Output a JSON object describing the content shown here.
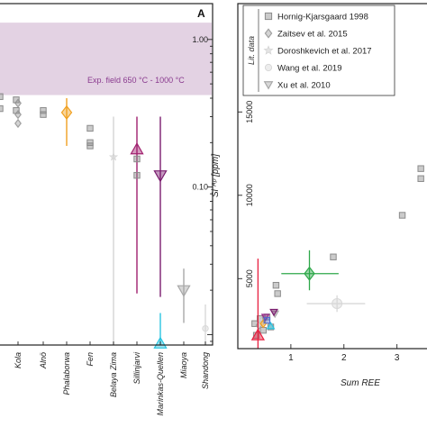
{
  "chart_data": [
    {
      "panel": "A",
      "type": "scatter",
      "y_scale": "log",
      "ylim": [
        0.0085,
        1.75
      ],
      "y_ticks": [
        {
          "label": "1.00",
          "value": 1.0
        },
        {
          "label": "0.10",
          "value": 0.1
        }
      ],
      "shaded_band": {
        "label": "Exp. field 650 °C - 1000 °C",
        "from": 0.42,
        "to": 1.3,
        "color": "#d9c3d9"
      },
      "categories": [
        "Kola",
        "Alnö",
        "Phalaborwa",
        "Fen",
        "Belaya Zima",
        "Sillinjarvi",
        "Marinkas-Quellen",
        "Miaoya",
        "Shandong"
      ],
      "series": [
        {
          "category": "edge",
          "marker": "square",
          "color": "#8c8c8c",
          "values": [
            0.41,
            0.34
          ]
        },
        {
          "category": "Kola",
          "marker": "diamond",
          "color": "#a0a0a0",
          "values": [
            0.37,
            0.31,
            0.27
          ]
        },
        {
          "category": "Kola",
          "marker": "square",
          "color": "#8c8c8c",
          "values": [
            0.39,
            0.33
          ]
        },
        {
          "category": "Alnö",
          "marker": "square",
          "color": "#8c8c8c",
          "values": [
            0.33,
            0.31
          ]
        },
        {
          "category": "Phalaborwa",
          "marker": "diamond",
          "color": "#f0a020",
          "values": [
            0.32
          ],
          "err": [
            0.19,
            0.4
          ]
        },
        {
          "category": "Fen",
          "marker": "square",
          "color": "#8c8c8c",
          "values": [
            0.25,
            0.2,
            0.19
          ]
        },
        {
          "category": "Belaya Zima",
          "marker": "star",
          "color": "#d4d4d4",
          "values": [
            0.16
          ],
          "err": [
            0.0085,
            0.3
          ]
        },
        {
          "category": "Sillinjarvi",
          "marker": "triangle-up",
          "color": "#a0206e",
          "values": [
            0.18
          ],
          "err": [
            0.019,
            0.3
          ]
        },
        {
          "category": "Sillinjarvi",
          "marker": "square",
          "color": "#8c8c8c",
          "values": [
            0.155,
            0.12
          ]
        },
        {
          "category": "Marinkas-Quellen",
          "marker": "triangle-down",
          "color": "#7a1c6e",
          "values": [
            0.12
          ],
          "err": [
            0.018,
            0.3
          ]
        },
        {
          "category": "Marinkas-Quellen",
          "marker": "triangle-up",
          "color": "#29c4e0",
          "values": [
            0.0087
          ],
          "err": [
            0.0085,
            0.014
          ]
        },
        {
          "category": "Miaoya",
          "marker": "triangle-down",
          "color": "#a8a8a8",
          "values": [
            0.02
          ],
          "err": [
            0.012,
            0.028
          ]
        },
        {
          "category": "Shandong",
          "marker": "circle",
          "color": "#d8d8d8",
          "values": [
            0.011
          ],
          "err": [
            0.0085,
            0.016
          ]
        }
      ]
    },
    {
      "panel": "B",
      "type": "scatter",
      "ylabel": "Si ᴬᵖ [ppm]",
      "xlabel": "Sum REE",
      "xlim": [
        0,
        3.6
      ],
      "ylim": [
        800,
        21500
      ],
      "x_ticks": [
        1,
        2,
        3
      ],
      "y_ticks": [
        5000,
        10000,
        15000
      ],
      "legend_title": "Lit. data",
      "legend": [
        {
          "label": "Hornig-Kjarsgaard 1998",
          "marker": "square",
          "color": "#8c8c8c"
        },
        {
          "label": "Zaitsev et al. 2015",
          "marker": "diamond",
          "color": "#a0a0a0"
        },
        {
          "label": "Doroshkevich et al. 2017",
          "marker": "star",
          "color": "#d4d4d4"
        },
        {
          "label": "Wang et al. 2019",
          "marker": "circle",
          "color": "#d8d8d8"
        },
        {
          "label": "Xu et al. 2010",
          "marker": "triangle-down",
          "color": "#a8a8a8"
        }
      ],
      "series": [
        {
          "name": "Hornig-Kjarsgaard 1998",
          "marker": "square",
          "color": "#8c8c8c",
          "points": [
            [
              1.05,
              17500
            ],
            [
              3.45,
              11600
            ],
            [
              3.45,
              11000
            ],
            [
              3.1,
              8800
            ],
            [
              1.8,
              6300
            ],
            [
              0.72,
              4600
            ],
            [
              0.75,
              4100
            ],
            [
              0.32,
              2300
            ],
            [
              0.42,
              2600
            ],
            [
              0.48,
              1900
            ],
            [
              0.55,
              2700
            ],
            [
              0.35,
              1600
            ],
            [
              0.62,
              2100
            ]
          ]
        },
        {
          "name": "Zaitsev et al. 2015",
          "marker": "diamond",
          "color": "#a0a0a0",
          "points": [
            [
              0.5,
              2600
            ],
            [
              0.4,
              2200
            ]
          ]
        },
        {
          "name": "Doroshkevich et al. 2017",
          "marker": "star",
          "color": "#d4d4d4",
          "points": [
            [
              0.45,
              2400
            ]
          ]
        },
        {
          "name": "Wang et al. 2019",
          "marker": "circle",
          "color": "#d8d8d8",
          "points": [
            [
              1.87,
              3500
            ]
          ],
          "xerr": [
            1.3,
            2.4
          ],
          "yerr": [
            3000,
            4000
          ]
        },
        {
          "name": "Xu et al. 2010",
          "marker": "triangle-down",
          "color": "#a8a8a8",
          "points": [
            [
              0.7,
              2900
            ]
          ]
        },
        {
          "name": "",
          "marker": "diamond",
          "color": "#2ea84a",
          "points": [
            [
              1.35,
              5300
            ]
          ],
          "xerr": [
            0.82,
            1.9
          ],
          "yerr": [
            4300,
            6700
          ]
        },
        {
          "name": "",
          "marker": "diamond",
          "color": "#f0a020",
          "points": [
            [
              0.48,
              2300
            ]
          ]
        },
        {
          "name": "",
          "marker": "triangle-up",
          "color": "#e82040",
          "points": [
            [
              0.38,
              1600
            ]
          ],
          "yerr": [
            800,
            6200
          ]
        },
        {
          "name": "",
          "marker": "triangle-down",
          "color": "#9a2a8a",
          "points": [
            [
              0.52,
              2700
            ]
          ]
        },
        {
          "name": "",
          "marker": "triangle-down",
          "color": "#7a1c6e",
          "points": [
            [
              0.68,
              3000
            ]
          ]
        },
        {
          "name": "",
          "marker": "triangle-up",
          "color": "#29c4e0",
          "points": [
            [
              0.62,
              2150
            ]
          ]
        },
        {
          "name": "",
          "marker": "square",
          "color": "#4a6ad0",
          "points": [
            [
              0.55,
              2500
            ]
          ]
        }
      ]
    }
  ]
}
